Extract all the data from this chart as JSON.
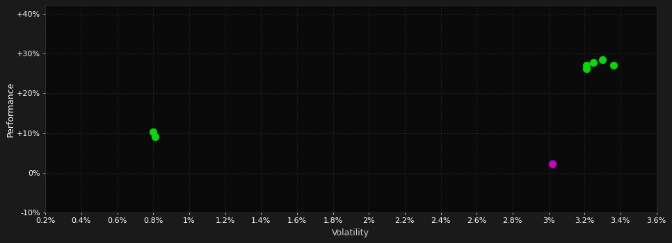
{
  "background_color": "#1a1a1a",
  "plot_bg_color": "#0a0a0a",
  "text_color": "#ffffff",
  "xlabel_color": "#cccccc",
  "green_points": [
    [
      0.008,
      0.103
    ],
    [
      0.0081,
      0.091
    ],
    [
      0.0321,
      0.271
    ],
    [
      0.0321,
      0.262
    ],
    [
      0.0325,
      0.278
    ],
    [
      0.033,
      0.284
    ],
    [
      0.0336,
      0.27
    ]
  ],
  "magenta_points": [
    [
      0.0302,
      0.022
    ]
  ],
  "xlabel": "Volatility",
  "ylabel": "Performance",
  "xlim": [
    0.002,
    0.036
  ],
  "ylim": [
    -0.1,
    0.42
  ],
  "xtick_values": [
    0.002,
    0.004,
    0.006,
    0.008,
    0.01,
    0.012,
    0.014,
    0.016,
    0.018,
    0.02,
    0.022,
    0.024,
    0.026,
    0.028,
    0.03,
    0.032,
    0.034,
    0.036
  ],
  "xtick_labels": [
    "0.2%",
    "0.4%",
    "0.6%",
    "0.8%",
    "1%",
    "1.2%",
    "1.4%",
    "1.6%",
    "1.8%",
    "2%",
    "2.2%",
    "2.4%",
    "2.6%",
    "2.8%",
    "3%",
    "3.2%",
    "3.4%",
    "3.6%"
  ],
  "ytick_values": [
    -0.1,
    0.0,
    0.1,
    0.2,
    0.3,
    0.4
  ],
  "ytick_labels": [
    "-10%",
    "0%",
    "+10%",
    "+20%",
    "+30%",
    "+40%"
  ],
  "green_color": "#00dd00",
  "magenta_color": "#cc00cc",
  "marker_size": 7,
  "figsize": [
    9.66,
    3.5
  ],
  "dpi": 100
}
